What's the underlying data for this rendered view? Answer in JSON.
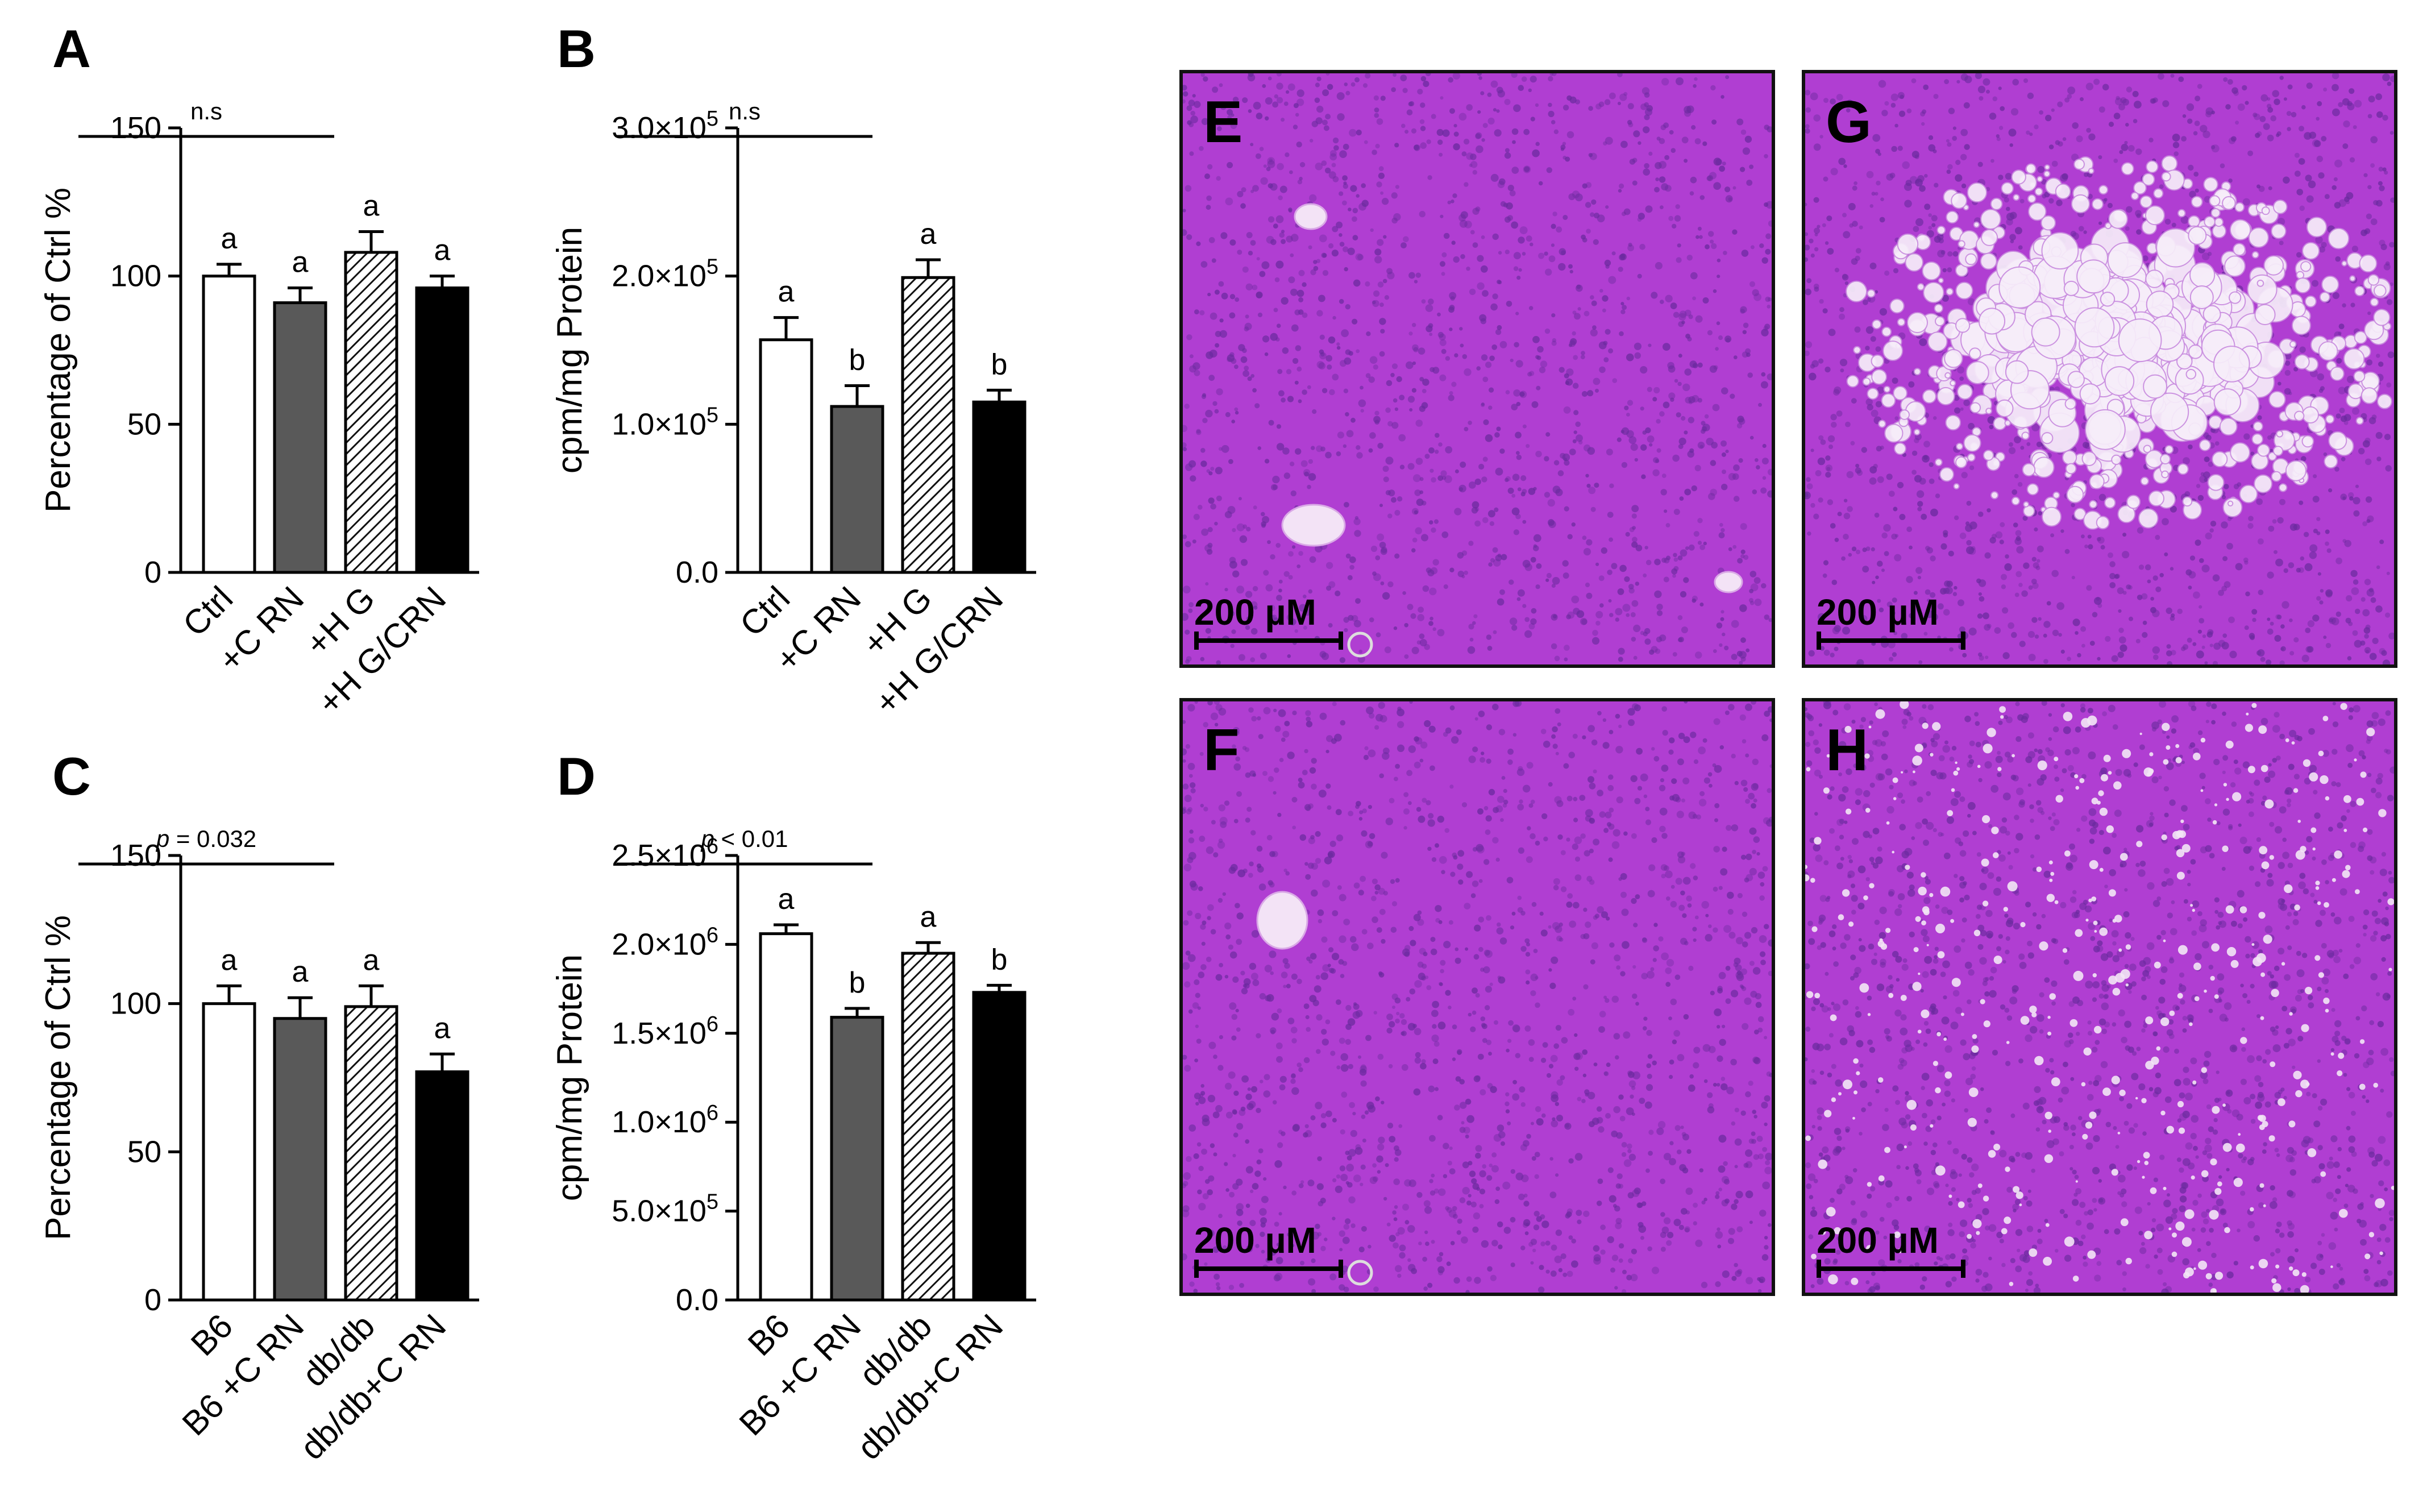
{
  "chart_data": [
    {
      "panel": "A",
      "type": "bar",
      "ylabel": "Percentage of  Ctrl  %",
      "ylim": [
        0,
        150
      ],
      "yticks": [
        0,
        50,
        100,
        150
      ],
      "ytick_labels": [
        "0",
        "50",
        "100",
        "150"
      ],
      "categories": [
        "Ctrl",
        "+C RN",
        "+H G",
        "+H G/CRN"
      ],
      "values": [
        100,
        91,
        108,
        96
      ],
      "errors": [
        4,
        5,
        7,
        4
      ],
      "letters": [
        "a",
        "a",
        "a",
        "a"
      ],
      "significance": "n.s",
      "significance_italic_p": false,
      "fills": [
        "white",
        "gray",
        "hatch",
        "black"
      ]
    },
    {
      "panel": "B",
      "type": "bar",
      "ylabel": "cpm/mg Protein",
      "ylim": [
        0,
        300000
      ],
      "yticks": [
        0,
        100000,
        200000,
        300000
      ],
      "ytick_labels": [
        "0.0",
        "1.0×10^5",
        "2.0×10^5",
        "3.0×10^5"
      ],
      "categories": [
        "Ctrl",
        "+C RN",
        "+H G",
        "+H G/CRN"
      ],
      "values": [
        157000,
        112000,
        199000,
        115000
      ],
      "errors": [
        15000,
        14000,
        12000,
        8000
      ],
      "letters": [
        "a",
        "b",
        "a",
        "b"
      ],
      "significance": "n.s",
      "significance_italic_p": false,
      "fills": [
        "white",
        "gray",
        "hatch",
        "black"
      ]
    },
    {
      "panel": "C",
      "type": "bar",
      "ylabel": "Percentage of Ctrl %",
      "ylim": [
        0,
        150
      ],
      "yticks": [
        0,
        50,
        100,
        150
      ],
      "ytick_labels": [
        "0",
        "50",
        "100",
        "150"
      ],
      "categories": [
        "B6",
        "B6 +C RN",
        "db/db",
        "db/db+C RN"
      ],
      "values": [
        100,
        95,
        99,
        77
      ],
      "errors": [
        6,
        7,
        7,
        6
      ],
      "letters": [
        "a",
        "a",
        "a",
        "a"
      ],
      "significance": " = 0.032",
      "significance_italic_p": true,
      "fills": [
        "white",
        "gray",
        "hatch",
        "black"
      ]
    },
    {
      "panel": "D",
      "type": "bar",
      "ylabel": "cpm/mg Protein",
      "ylim": [
        0,
        2500000
      ],
      "yticks": [
        0,
        500000,
        1000000,
        1500000,
        2000000,
        2500000
      ],
      "ytick_labels": [
        "0.0",
        "5.0×10^5",
        "1.0×10^6",
        "1.5×10^6",
        "2.0×10^6",
        "2.5×10^6"
      ],
      "categories": [
        "B6",
        "B6 +C RN",
        "db/db",
        "db/db+C RN"
      ],
      "values": [
        2060000,
        1590000,
        1950000,
        1730000
      ],
      "errors": [
        50000,
        50000,
        60000,
        40000
      ],
      "letters": [
        "a",
        "b",
        "a",
        "b"
      ],
      "significance": " < 0.01",
      "significance_italic_p": true,
      "fills": [
        "white",
        "gray",
        "hatch",
        "black"
      ]
    }
  ],
  "micrographs": [
    {
      "letter": "E",
      "scale": "200 µM",
      "fat": "none"
    },
    {
      "letter": "G",
      "scale": "200 µM",
      "fat": "heavy"
    },
    {
      "letter": "F",
      "scale": "200 µM",
      "fat": "none"
    },
    {
      "letter": "H",
      "scale": "200 µM",
      "fat": "light"
    }
  ],
  "colors": {
    "stain": "#b03ed2",
    "vessel": "#f3e3f6",
    "nuclei": "#6a2a9e",
    "gray_bar": "#595959"
  }
}
